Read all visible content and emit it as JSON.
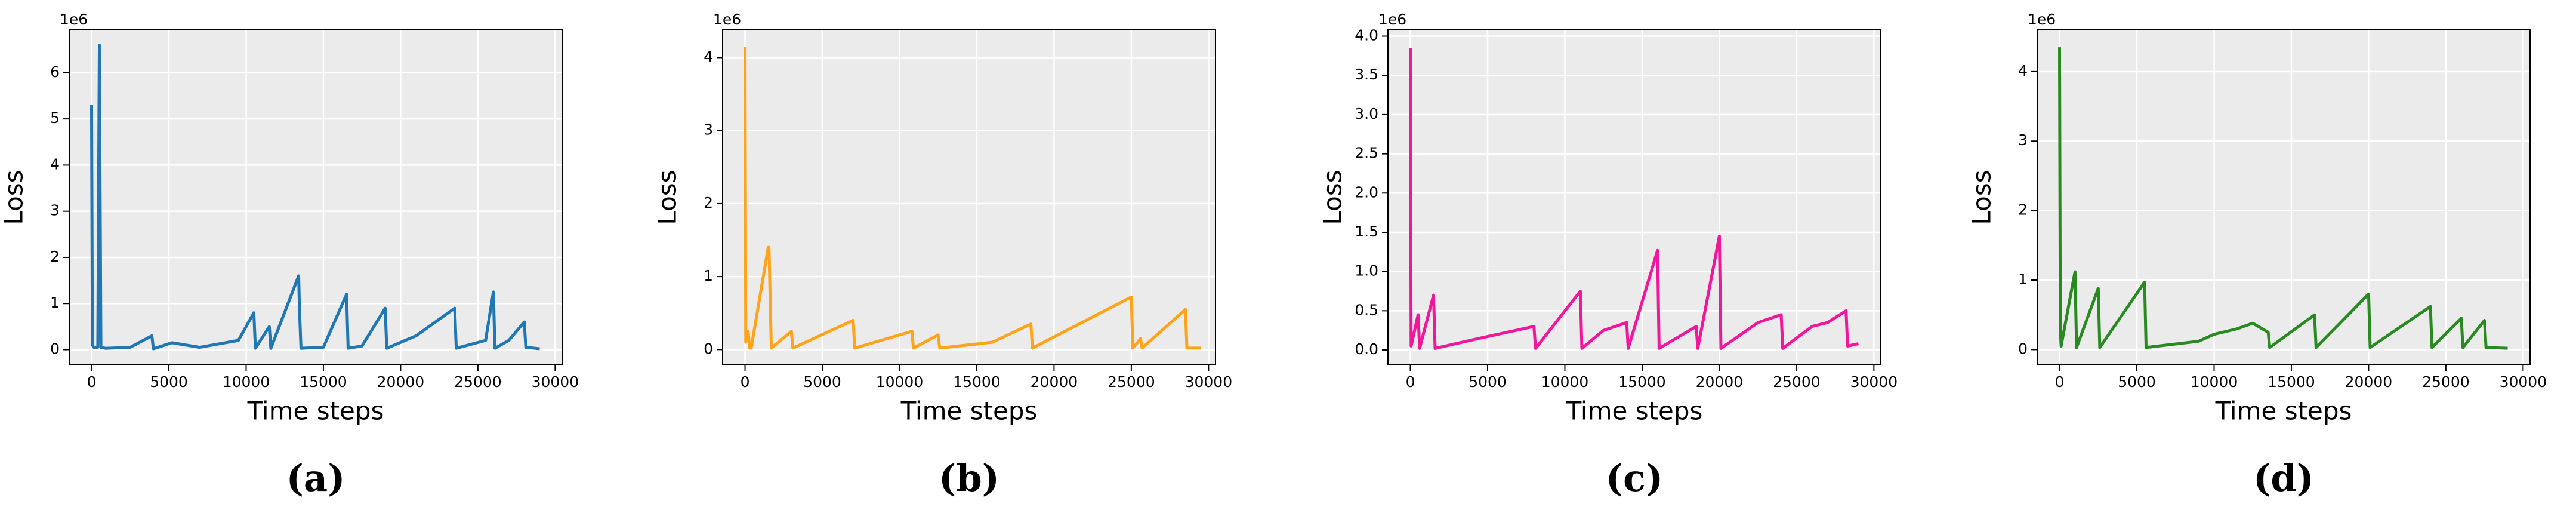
{
  "chart_data": [
    {
      "type": "line",
      "caption": "(a)",
      "x_label": "Time steps",
      "y_label": "Loss",
      "offset_label": "1e6",
      "color": "#1f77b4",
      "x": [
        0,
        50,
        150,
        400,
        500,
        600,
        900,
        2500,
        3900,
        4000,
        4100,
        5200,
        7000,
        9500,
        10500,
        10600,
        11500,
        11600,
        13400,
        13450,
        13550,
        15000,
        16500,
        16600,
        17500,
        19000,
        19100,
        21000,
        23500,
        23600,
        25500,
        26000,
        26100,
        27000,
        28000,
        28100,
        29000
      ],
      "values": [
        5.3,
        0.1,
        0.05,
        0.05,
        6.6,
        0.05,
        0.03,
        0.05,
        0.3,
        0.02,
        0.03,
        0.15,
        0.05,
        0.2,
        0.8,
        0.03,
        0.5,
        0.03,
        1.6,
        0.9,
        0.03,
        0.05,
        1.2,
        0.03,
        0.08,
        0.9,
        0.03,
        0.3,
        0.9,
        0.03,
        0.2,
        1.25,
        0.03,
        0.2,
        0.6,
        0.05,
        0.02
      ],
      "xlim": [
        -1450,
        30450
      ],
      "xticks": [
        0,
        5000,
        10000,
        15000,
        20000,
        25000,
        30000
      ],
      "ylim": [
        -0.33,
        6.93
      ],
      "yticks": [
        0,
        1,
        2,
        3,
        4,
        5,
        6
      ],
      "grid": true
    },
    {
      "type": "line",
      "caption": "(b)",
      "x_label": "Time steps",
      "y_label": "Loss",
      "offset_label": "1e6",
      "color": "#ffa319",
      "x": [
        0,
        50,
        200,
        300,
        400,
        1500,
        1550,
        1700,
        3000,
        3100,
        7000,
        7100,
        10800,
        10900,
        12500,
        12600,
        16000,
        18500,
        18600,
        25000,
        25100,
        25600,
        25700,
        28500,
        28600,
        29500
      ],
      "values": [
        4.15,
        0.1,
        0.25,
        0.02,
        0.02,
        1.4,
        1.4,
        0.02,
        0.25,
        0.02,
        0.4,
        0.02,
        0.25,
        0.02,
        0.2,
        0.02,
        0.1,
        0.35,
        0.02,
        0.72,
        0.02,
        0.15,
        0.02,
        0.55,
        0.02,
        0.02
      ],
      "xlim": [
        -1450,
        30450
      ],
      "xticks": [
        0,
        5000,
        10000,
        15000,
        20000,
        25000,
        30000
      ],
      "ylim": [
        -0.21,
        4.38
      ],
      "yticks": [
        0,
        1,
        2,
        3,
        4
      ],
      "grid": true
    },
    {
      "type": "line",
      "caption": "(c)",
      "x_label": "Time steps",
      "y_label": "Loss",
      "offset_label": "1e6",
      "color": "#f0179a",
      "x": [
        0,
        50,
        500,
        600,
        1500,
        1600,
        4500,
        8000,
        8100,
        11000,
        11100,
        12500,
        14000,
        14100,
        16000,
        16100,
        18500,
        18600,
        20000,
        20100,
        22500,
        24000,
        24100,
        26000,
        27000,
        28200,
        28300,
        29000
      ],
      "values": [
        3.85,
        0.05,
        0.45,
        0.02,
        0.7,
        0.02,
        0.15,
        0.3,
        0.02,
        0.75,
        0.02,
        0.25,
        0.35,
        0.02,
        1.27,
        0.02,
        0.3,
        0.02,
        1.45,
        0.02,
        0.35,
        0.45,
        0.02,
        0.3,
        0.35,
        0.5,
        0.05,
        0.08
      ],
      "xlim": [
        -1450,
        30450
      ],
      "xticks": [
        0,
        5000,
        10000,
        15000,
        20000,
        25000,
        30000
      ],
      "ylim": [
        -0.19,
        4.08
      ],
      "yticks": [
        {
          "value": 0,
          "label": "0.0"
        },
        {
          "value": 0.5,
          "label": "0.5"
        },
        {
          "value": 1,
          "label": "1.0"
        },
        {
          "value": 1.5,
          "label": "1.5"
        },
        {
          "value": 2,
          "label": "2.0"
        },
        {
          "value": 2.5,
          "label": "2.5"
        },
        {
          "value": 3,
          "label": "3.0"
        },
        {
          "value": 3.5,
          "label": "3.5"
        },
        {
          "value": 4,
          "label": "4.0"
        }
      ],
      "grid": true
    },
    {
      "type": "line",
      "caption": "(d)",
      "x_label": "Time steps",
      "y_label": "Loss",
      "offset_label": "1e6",
      "color": "#2a8a22",
      "x": [
        0,
        50,
        100,
        1000,
        1100,
        2500,
        2600,
        5500,
        5600,
        9000,
        10000,
        11500,
        12500,
        13500,
        13600,
        16500,
        16600,
        20000,
        20100,
        24000,
        24100,
        26000,
        26100,
        27500,
        27600,
        29000
      ],
      "values": [
        4.35,
        0.3,
        0.05,
        1.12,
        0.03,
        0.88,
        0.03,
        0.97,
        0.03,
        0.12,
        0.22,
        0.3,
        0.38,
        0.25,
        0.03,
        0.5,
        0.03,
        0.8,
        0.03,
        0.62,
        0.03,
        0.45,
        0.03,
        0.42,
        0.03,
        0.02
      ],
      "xlim": [
        -1450,
        30450
      ],
      "xticks": [
        0,
        5000,
        10000,
        15000,
        20000,
        25000,
        30000
      ],
      "ylim": [
        -0.22,
        4.6
      ],
      "yticks": [
        0,
        1,
        2,
        3,
        4
      ],
      "grid": true
    }
  ]
}
